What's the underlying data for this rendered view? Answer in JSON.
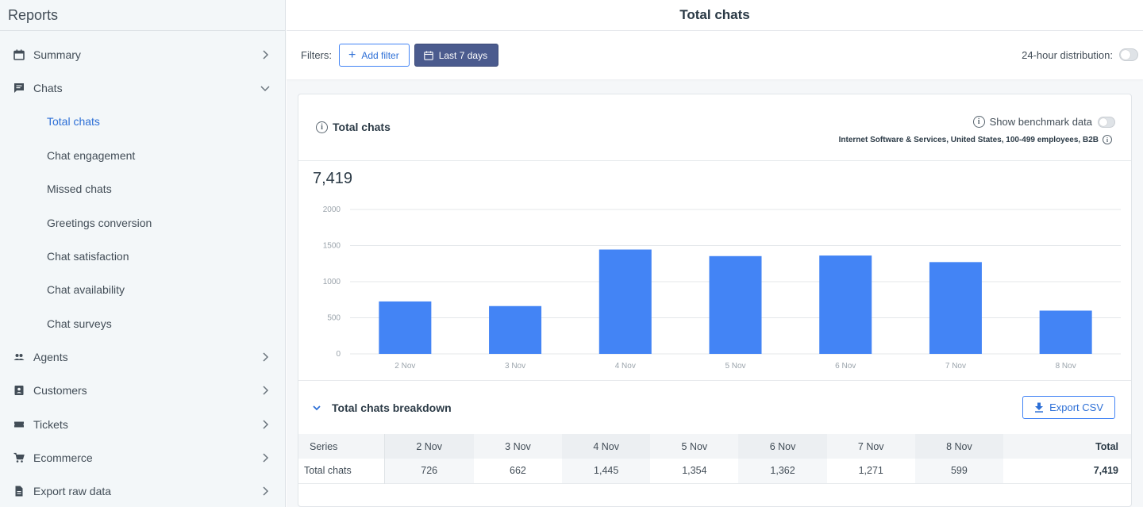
{
  "sidebar": {
    "title": "Reports",
    "summary": "Summary",
    "chats": "Chats",
    "chats_sub": [
      "Total chats",
      "Chat engagement",
      "Missed chats",
      "Greetings conversion",
      "Chat satisfaction",
      "Chat availability",
      "Chat surveys"
    ],
    "agents": "Agents",
    "customers": "Customers",
    "tickets": "Tickets",
    "ecommerce": "Ecommerce",
    "export": "Export raw data"
  },
  "topbar": {
    "title": "Total chats"
  },
  "filters": {
    "label": "Filters:",
    "add_filter": "Add filter",
    "date_range": "Last 7 days",
    "distribution_label": "24-hour distribution:"
  },
  "card": {
    "title": "Total chats",
    "benchmark_label": "Show benchmark data",
    "benchmark_segment": "Internet Software & Services, United States, 100-499 employees, B2B",
    "total": "7,419"
  },
  "chart_data": {
    "type": "bar",
    "categories": [
      "2 Nov",
      "3 Nov",
      "4 Nov",
      "5 Nov",
      "6 Nov",
      "7 Nov",
      "8 Nov"
    ],
    "values": [
      726,
      662,
      1445,
      1354,
      1362,
      1271,
      599
    ],
    "yticks": [
      0,
      500,
      1000,
      1500,
      2000
    ],
    "ylim": [
      0,
      2000
    ],
    "color": "#4384f5",
    "grid": true
  },
  "breakdown": {
    "title": "Total chats breakdown",
    "export_label": "Export CSV",
    "table": {
      "headers": [
        "Series",
        "2 Nov",
        "3 Nov",
        "4 Nov",
        "5 Nov",
        "6 Nov",
        "7 Nov",
        "8 Nov",
        "Total"
      ],
      "row": [
        "Total chats",
        "726",
        "662",
        "1,445",
        "1,354",
        "1,362",
        "1,271",
        "599",
        "7,419"
      ]
    }
  }
}
